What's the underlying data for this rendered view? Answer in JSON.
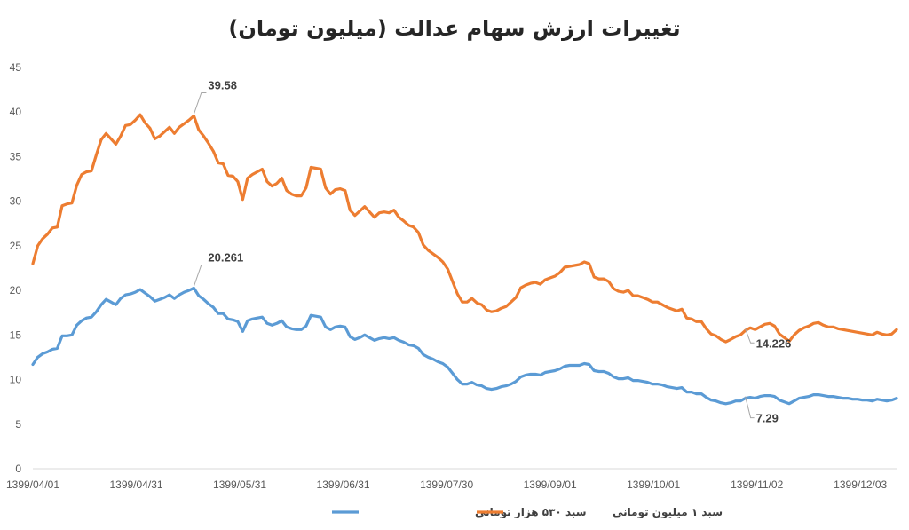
{
  "chart_data": {
    "type": "line",
    "title": "تغییرات ارزش سهام عدالت (میلیون تومان)",
    "ylim": [
      0,
      45
    ],
    "yticks": [
      0,
      5,
      10,
      15,
      20,
      25,
      30,
      35,
      40,
      45
    ],
    "xtick_labels": [
      "1399/04/01",
      "1399/04/31",
      "1399/05/31",
      "1399/06/31",
      "1399/07/30",
      "1399/09/01",
      "1399/10/01",
      "1399/11/02",
      "1399/12/03"
    ],
    "grid": false,
    "legend": "bottom",
    "series": [
      {
        "name": "سبد ۱ میلیون تومانی",
        "color": "#ED7D31",
        "values": [
          23.0,
          25.0,
          25.8,
          26.3,
          27.0,
          27.1,
          29.5,
          29.7,
          29.8,
          31.8,
          33.0,
          33.3,
          33.4,
          35.2,
          36.9,
          37.6,
          37.0,
          36.4,
          37.3,
          38.5,
          38.6,
          39.1,
          39.7,
          38.8,
          38.2,
          37.0,
          37.3,
          37.8,
          38.3,
          37.6,
          38.3,
          38.7,
          39.1,
          39.58,
          38.0,
          37.3,
          36.5,
          35.6,
          34.3,
          34.2,
          32.9,
          32.8,
          32.2,
          30.2,
          32.6,
          33.0,
          33.3,
          33.6,
          32.2,
          31.7,
          32.0,
          32.6,
          31.2,
          30.8,
          30.6,
          30.6,
          31.5,
          33.8,
          33.7,
          33.6,
          31.5,
          30.8,
          31.3,
          31.4,
          31.2,
          29.0,
          28.4,
          28.9,
          29.4,
          28.8,
          28.2,
          28.7,
          28.8,
          28.7,
          29.0,
          28.2,
          27.8,
          27.3,
          27.1,
          26.5,
          25.1,
          24.5,
          24.1,
          23.7,
          23.2,
          22.4,
          21.0,
          19.6,
          18.7,
          18.7,
          19.1,
          18.6,
          18.4,
          17.8,
          17.6,
          17.7,
          18.0,
          18.2,
          18.7,
          19.2,
          20.3,
          20.6,
          20.8,
          20.9,
          20.7,
          21.2,
          21.4,
          21.6,
          22.0,
          22.6,
          22.7,
          22.8,
          22.9,
          23.2,
          23.0,
          21.5,
          21.3,
          21.3,
          21.0,
          20.2,
          19.9,
          19.8,
          20.0,
          19.4,
          19.4,
          19.2,
          19.0,
          18.7,
          18.7,
          18.4,
          18.1,
          17.9,
          17.7,
          17.9,
          16.9,
          16.8,
          16.5,
          16.5,
          15.7,
          15.1,
          14.9,
          14.5,
          14.226,
          14.5,
          14.8,
          15.0,
          15.5,
          15.8,
          15.6,
          15.9,
          16.2,
          16.3,
          16.0,
          15.1,
          14.7,
          14.3,
          15.0,
          15.5,
          15.8,
          16.0,
          16.3,
          16.4,
          16.1,
          15.9,
          15.9,
          15.7,
          15.6,
          15.5,
          15.4,
          15.3,
          15.2,
          15.1,
          15.0,
          15.3,
          15.1,
          15.0,
          15.1,
          15.6
        ]
      },
      {
        "name": "سبد ۵۳۰ هزار تومانی",
        "color": "#5B9BD5",
        "values": [
          11.7,
          12.5,
          12.9,
          13.1,
          13.4,
          13.5,
          14.9,
          14.9,
          15.0,
          16.1,
          16.6,
          16.9,
          17.0,
          17.6,
          18.4,
          19.0,
          18.7,
          18.4,
          19.1,
          19.5,
          19.6,
          19.8,
          20.1,
          19.7,
          19.3,
          18.8,
          19.0,
          19.2,
          19.5,
          19.1,
          19.5,
          19.8,
          20.0,
          20.261,
          19.4,
          19.0,
          18.5,
          18.1,
          17.4,
          17.4,
          16.8,
          16.7,
          16.5,
          15.4,
          16.6,
          16.8,
          16.9,
          17.0,
          16.3,
          16.1,
          16.3,
          16.6,
          15.9,
          15.7,
          15.6,
          15.6,
          16.0,
          17.2,
          17.1,
          17.0,
          15.9,
          15.6,
          15.9,
          16.0,
          15.9,
          14.8,
          14.5,
          14.7,
          15.0,
          14.7,
          14.4,
          14.6,
          14.7,
          14.6,
          14.7,
          14.4,
          14.2,
          13.9,
          13.8,
          13.5,
          12.8,
          12.5,
          12.3,
          12.0,
          11.8,
          11.4,
          10.7,
          10.0,
          9.5,
          9.5,
          9.7,
          9.4,
          9.3,
          9.0,
          8.9,
          9.0,
          9.2,
          9.3,
          9.5,
          9.8,
          10.3,
          10.5,
          10.6,
          10.6,
          10.5,
          10.8,
          10.9,
          11.0,
          11.2,
          11.5,
          11.6,
          11.6,
          11.6,
          11.8,
          11.7,
          11.0,
          10.9,
          10.9,
          10.7,
          10.3,
          10.1,
          10.1,
          10.2,
          9.9,
          9.9,
          9.8,
          9.7,
          9.5,
          9.5,
          9.4,
          9.2,
          9.1,
          9.0,
          9.1,
          8.6,
          8.6,
          8.4,
          8.4,
          8.0,
          7.7,
          7.6,
          7.4,
          7.29,
          7.4,
          7.6,
          7.6,
          7.9,
          8.0,
          7.9,
          8.1,
          8.2,
          8.2,
          8.1,
          7.7,
          7.5,
          7.3,
          7.6,
          7.9,
          8.0,
          8.1,
          8.3,
          8.3,
          8.2,
          8.1,
          8.1,
          8.0,
          7.9,
          7.9,
          7.8,
          7.8,
          7.7,
          7.7,
          7.6,
          7.8,
          7.7,
          7.6,
          7.7,
          7.9
        ]
      }
    ],
    "annotations": [
      {
        "text": "39.58",
        "series": 0,
        "index": 33
      },
      {
        "text": "14.226",
        "series": 0,
        "index": 146
      },
      {
        "text": "20.261",
        "series": 1,
        "index": 33
      },
      {
        "text": "7.29",
        "series": 1,
        "index": 146
      }
    ]
  }
}
